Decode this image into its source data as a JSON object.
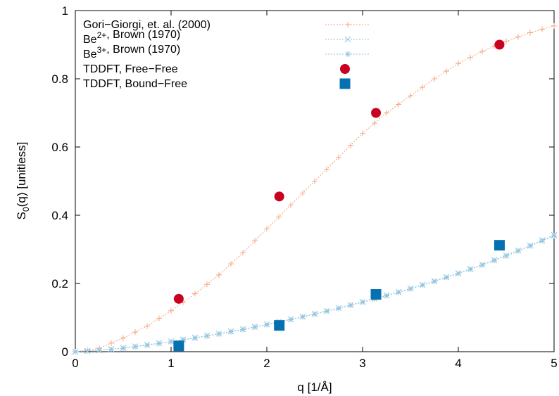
{
  "chart_data": {
    "type": "scatter",
    "xlabel": "q [1/Å]",
    "ylabel_parts": [
      "S",
      "0",
      "(q) [unitless]"
    ],
    "xlim": [
      0,
      5
    ],
    "ylim": [
      0,
      1
    ],
    "xticks": [
      0,
      1,
      2,
      3,
      4,
      5
    ],
    "yticks": [
      0,
      0.2,
      0.4,
      0.6,
      0.8,
      1
    ],
    "x_tick_labels": [
      "0",
      "1",
      "2",
      "3",
      "4",
      "5"
    ],
    "y_tick_labels": [
      "0",
      "0.2",
      "0.4",
      "0.6",
      "0.8",
      "1"
    ],
    "grid": false,
    "legend_position": "top-left",
    "series": [
      {
        "name": "Gori−Giorgi, et. al. (2000)",
        "label_parts": [
          {
            "t": "Gori−Giorgi, et. al. (2000)",
            "sup": ""
          }
        ],
        "color": "#f4a582",
        "style": "line-plus",
        "x": [
          0.0,
          0.25,
          0.5,
          0.75,
          1.0,
          1.25,
          1.5,
          1.75,
          2.0,
          2.25,
          2.5,
          2.75,
          3.0,
          3.25,
          3.5,
          3.75,
          4.0,
          4.25,
          4.5,
          4.75,
          5.0
        ],
        "y": [
          0.0,
          0.01,
          0.04,
          0.075,
          0.12,
          0.17,
          0.225,
          0.29,
          0.36,
          0.43,
          0.5,
          0.57,
          0.64,
          0.7,
          0.75,
          0.8,
          0.845,
          0.88,
          0.91,
          0.935,
          0.955
        ]
      },
      {
        "name": "Be2+, Brown (1970)",
        "label_parts": [
          {
            "t": "Be",
            "sup": "2+"
          },
          {
            "t": ", Brown (1970)",
            "sup": ""
          }
        ],
        "color": "#92c5de",
        "style": "line-x",
        "x": [
          0.0,
          0.25,
          0.5,
          0.75,
          1.0,
          1.25,
          1.5,
          1.75,
          2.0,
          2.25,
          2.5,
          2.75,
          3.0,
          3.25,
          3.5,
          3.75,
          4.0,
          4.25,
          4.5,
          4.75,
          5.0
        ],
        "y": [
          0.0,
          0.004,
          0.011,
          0.02,
          0.03,
          0.041,
          0.053,
          0.066,
          0.08,
          0.095,
          0.111,
          0.128,
          0.146,
          0.165,
          0.185,
          0.207,
          0.23,
          0.255,
          0.282,
          0.311,
          0.342
        ]
      },
      {
        "name": "Be3+, Brown (1970)",
        "label_parts": [
          {
            "t": "Be",
            "sup": "3+"
          },
          {
            "t": ", Brown (1970)",
            "sup": ""
          }
        ],
        "color": "#92c5de",
        "style": "line-star",
        "x": [
          0.0,
          0.25,
          0.5,
          0.75,
          1.0,
          1.25,
          1.5,
          1.75,
          2.0,
          2.25,
          2.5,
          2.75,
          3.0,
          3.25,
          3.5,
          3.75,
          4.0,
          4.25,
          4.5,
          4.75,
          5.0
        ],
        "y": [
          0.0,
          0.004,
          0.01,
          0.019,
          0.029,
          0.04,
          0.052,
          0.065,
          0.079,
          0.094,
          0.11,
          0.127,
          0.145,
          0.164,
          0.184,
          0.206,
          0.229,
          0.254,
          0.281,
          0.31,
          0.34
        ]
      },
      {
        "name": "TDDFT, Free−Free",
        "label_parts": [
          {
            "t": "TDDFT, Free−Free",
            "sup": ""
          }
        ],
        "color": "#ca0020",
        "style": "circle",
        "x": [
          1.08,
          2.13,
          3.14,
          4.43
        ],
        "y": [
          0.155,
          0.455,
          0.7,
          0.9
        ]
      },
      {
        "name": "TDDFT, Bound−Free",
        "label_parts": [
          {
            "t": "TDDFT, Bound−Free",
            "sup": ""
          }
        ],
        "color": "#0571b0",
        "style": "square",
        "x": [
          1.08,
          2.13,
          3.14,
          4.43
        ],
        "y": [
          0.017,
          0.077,
          0.168,
          0.312
        ]
      }
    ]
  }
}
